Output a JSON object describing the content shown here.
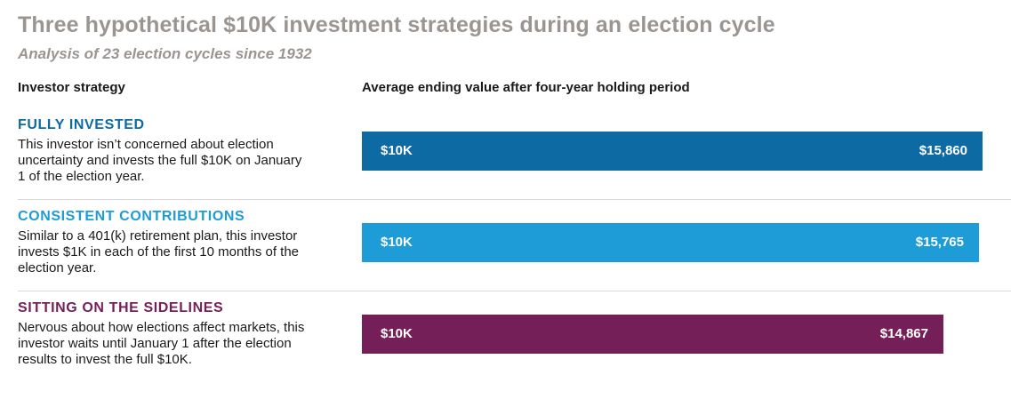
{
  "chart_data": {
    "type": "bar",
    "title": "Three hypothetical $10K investment strategies during an election cycle",
    "subtitle": "Analysis of 23 election cycles since 1932",
    "column_headers": {
      "left": "Investor strategy",
      "right": "Average ending value after four-year holding period"
    },
    "orientation": "horizontal",
    "categories": [
      "FULLY INVESTED",
      "CONSISTENT CONTRIBUTIONS",
      "SITTING ON THE SIDELINES"
    ],
    "start_value": 10000,
    "values": [
      15860,
      15765,
      14867
    ],
    "series": [
      {
        "name": "FULLY INVESTED",
        "description": "This investor isn’t concerned about election uncertainty and invests the full $10K on January 1 of the election year.",
        "start_label": "$10K",
        "end_label": "$15,860",
        "value": 15860,
        "color": "#0e6aa3"
      },
      {
        "name": "CONSISTENT CONTRIBUTIONS",
        "description": "Similar to a 401(k) retirement plan, this investor invests $1K in each of the first 10 months of the election year.",
        "start_label": "$10K",
        "end_label": "$15,765",
        "value": 15765,
        "color": "#1d9cd8"
      },
      {
        "name": "SITTING ON THE SIDELINES",
        "description": "Nervous about how elections affect markets, this investor waits until January 1 after the election results to invest the full $10K.",
        "start_label": "$10K",
        "end_label": "$14,867",
        "value": 14867,
        "color": "#751f58"
      }
    ],
    "grid": false,
    "legend": "none"
  },
  "colors": {
    "title": "#9b9592",
    "divider": "#d9d9d9",
    "label_fully_invested": "#0e6aa3",
    "label_consistent": "#1d9cd8",
    "label_sidelines": "#751f58"
  }
}
